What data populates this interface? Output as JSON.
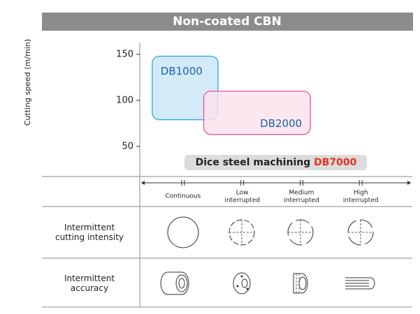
{
  "chart_data": {
    "type": "range",
    "title": "Non-coated CBN",
    "y_label": "Cutting speed (m/min)",
    "ylim": [
      17.3,
      162
    ],
    "yticks": [
      50,
      100,
      150
    ],
    "xlim": [
      -0.73,
      3.87
    ],
    "categories": [
      "Continuous",
      "Low\ninterrupted",
      "Medium\ninterrupted",
      "High\ninterrupted"
    ],
    "series": [
      {
        "name": "DB1000",
        "color": "#2aa8d8",
        "fill": "#cde6f7",
        "x": [
          -0.52,
          0.59
        ],
        "y": [
          79,
          148
        ]
      },
      {
        "name": "DB2000",
        "color": "#e2579a",
        "fill": "#fbe3ef",
        "x": [
          0.35,
          2.15
        ],
        "y": [
          63,
          110
        ]
      }
    ],
    "annotation": {
      "text": "Dice steel machining",
      "highlight": "DB7000",
      "highlight_color": "#e8311f"
    }
  },
  "table": {
    "rows": [
      "Intermittent\ncutting intensity",
      "Intermittent\naccuracy"
    ]
  }
}
